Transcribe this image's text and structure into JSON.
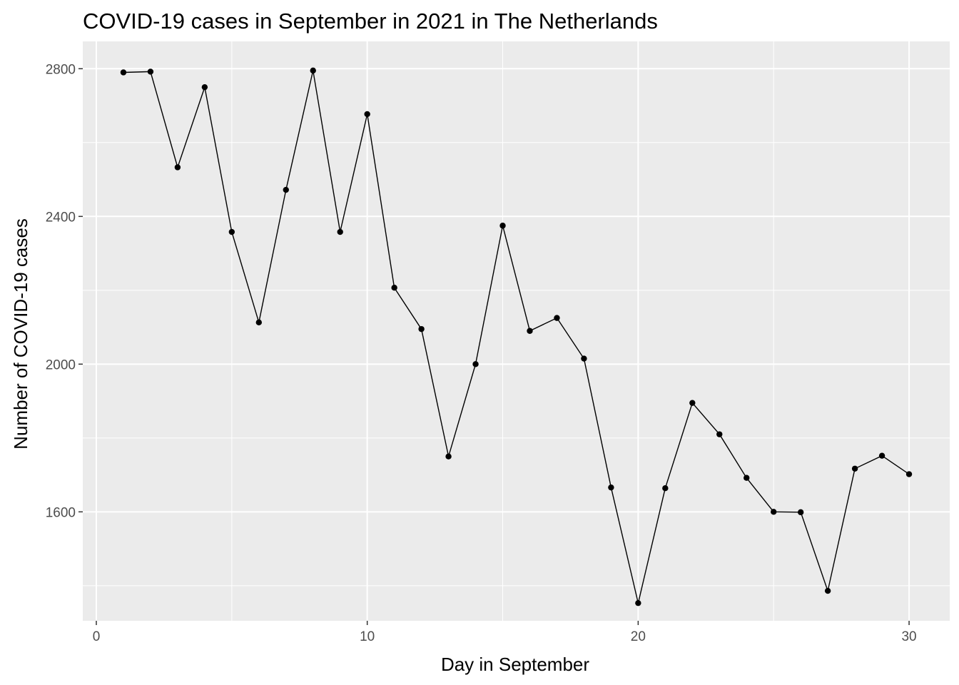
{
  "chart_data": {
    "type": "line",
    "title": "COVID-19 cases in September in 2021 in The Netherlands",
    "xlabel": "Day in September",
    "ylabel": "Number of COVID-19 cases",
    "xlim": [
      -0.5,
      31.5
    ],
    "ylim": [
      1305,
      2874
    ],
    "x_ticks": [
      0,
      10,
      20,
      30
    ],
    "x_tick_labels": [
      "0",
      "10",
      "20",
      "30"
    ],
    "x_minor_ticks": [
      5,
      15,
      25
    ],
    "y_ticks": [
      1600,
      2000,
      2400,
      2800
    ],
    "y_tick_labels": [
      "1600",
      "2000",
      "2400",
      "2800"
    ],
    "y_minor_ticks": [
      1400,
      1800,
      2200,
      2600
    ],
    "grid": true,
    "legend": "none",
    "colors": {
      "panel": "#ebebeb",
      "grid": "#ffffff",
      "line": "#000000",
      "tick_text": "#4d4d4d",
      "axis_tick": "#333333"
    },
    "x": [
      1,
      2,
      3,
      4,
      5,
      6,
      7,
      8,
      9,
      10,
      11,
      12,
      13,
      14,
      15,
      16,
      17,
      18,
      19,
      20,
      21,
      22,
      23,
      24,
      25,
      26,
      27,
      28,
      29,
      30
    ],
    "values": [
      2790,
      2792,
      2533,
      2750,
      2358,
      2113,
      2472,
      2795,
      2358,
      2677,
      2207,
      2095,
      1750,
      2000,
      2375,
      2090,
      2125,
      2015,
      1666,
      1353,
      1664,
      1895,
      1810,
      1692,
      1600,
      1599,
      1386,
      1717,
      1752,
      1702
    ]
  }
}
